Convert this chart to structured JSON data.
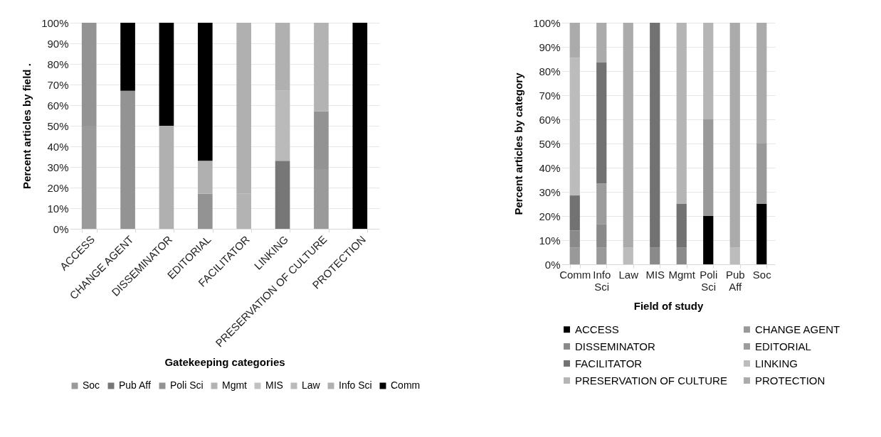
{
  "chart_data": [
    {
      "type": "bar",
      "stacked": true,
      "xlabel": "Gatekeeping categories",
      "ylabel": "Percent articles by field .",
      "categories": [
        "ACCESS",
        "CHANGE AGENT",
        "DISSEMINATOR",
        "EDITORIAL",
        "FACILITATOR",
        "LINKING",
        "PRESERVATION OF CULTURE",
        "PROTECTION"
      ],
      "ylim": [
        0,
        100
      ],
      "yticks": [
        {
          "value": 0,
          "label": "0%"
        },
        {
          "value": 10,
          "label": "10%"
        },
        {
          "value": 20,
          "label": "20%"
        },
        {
          "value": 30,
          "label": "30%"
        },
        {
          "value": 40,
          "label": "40%"
        },
        {
          "value": 50,
          "label": "50%"
        },
        {
          "value": 60,
          "label": "60%"
        },
        {
          "value": 70,
          "label": "70%"
        },
        {
          "value": 80,
          "label": "80%"
        },
        {
          "value": 90,
          "label": "90%"
        },
        {
          "value": 100,
          "label": "100%"
        }
      ],
      "grid": "y",
      "legend": "bottom",
      "series": [
        {
          "name": "Soc",
          "color": "#9a9a9a",
          "values": [
            50,
            null,
            null,
            null,
            null,
            null,
            29,
            null
          ]
        },
        {
          "name": "Pub Aff",
          "color": "#777777",
          "values": [
            null,
            null,
            null,
            null,
            null,
            33,
            null,
            null
          ]
        },
        {
          "name": "Poli Sci",
          "color": "#939393",
          "values": [
            50,
            67,
            null,
            17,
            null,
            null,
            28,
            null
          ]
        },
        {
          "name": "Mgmt",
          "color": "#b3b3b3",
          "values": [
            null,
            null,
            null,
            null,
            17,
            null,
            43,
            null
          ]
        },
        {
          "name": "MIS",
          "color": "#c2c2c2",
          "values": [
            null,
            null,
            null,
            null,
            null,
            null,
            null,
            null
          ]
        },
        {
          "name": "Law",
          "color": "#bababa",
          "values": [
            null,
            null,
            null,
            null,
            null,
            34,
            null,
            null
          ]
        },
        {
          "name": "Info Sci",
          "color": "#b0b0b0",
          "values": [
            null,
            null,
            50,
            16,
            83,
            33,
            null,
            null
          ]
        },
        {
          "name": "Comm",
          "color": "#000000",
          "values": [
            null,
            33,
            50,
            67,
            null,
            null,
            null,
            100
          ]
        }
      ]
    },
    {
      "type": "bar",
      "stacked": true,
      "xlabel": "Field of study",
      "ylabel": "Percent articles by category",
      "categories": [
        "Comm",
        "Info Sci",
        "Law",
        "MIS",
        "Mgmt",
        "Poli Sci",
        "Pub Aff",
        "Soc"
      ],
      "ylim": [
        0,
        100
      ],
      "yticks": [
        {
          "value": 0,
          "label": "0%"
        },
        {
          "value": 10,
          "label": "10%"
        },
        {
          "value": 20,
          "label": "20%"
        },
        {
          "value": 30,
          "label": "30%"
        },
        {
          "value": 40,
          "label": "40%"
        },
        {
          "value": 50,
          "label": "50%"
        },
        {
          "value": 60,
          "label": "60%"
        },
        {
          "value": 70,
          "label": "70%"
        },
        {
          "value": 80,
          "label": "80%"
        },
        {
          "value": 90,
          "label": "90%"
        },
        {
          "value": 100,
          "label": "100%"
        }
      ],
      "grid": "y",
      "legend": "bottom",
      "series": [
        {
          "name": "ACCESS",
          "color": "#000000",
          "values": [
            null,
            null,
            null,
            null,
            null,
            20,
            null,
            25
          ]
        },
        {
          "name": "CHANGE AGENT",
          "color": "#999999",
          "values": [
            7,
            7,
            null,
            null,
            null,
            40,
            null,
            25
          ]
        },
        {
          "name": "DISSEMINATOR",
          "color": "#8a8a8a",
          "values": [
            7,
            9.5,
            null,
            7,
            7,
            null,
            null,
            null
          ]
        },
        {
          "name": "EDITORIAL",
          "color": "#9c9c9c",
          "values": [
            null,
            17,
            null,
            null,
            null,
            null,
            null,
            null
          ]
        },
        {
          "name": "FACILITATOR",
          "color": "#727272",
          "values": [
            14.5,
            50,
            null,
            93,
            18,
            null,
            null,
            null
          ]
        },
        {
          "name": "LINKING",
          "color": "#bcbcbc",
          "values": [
            57,
            null,
            7,
            null,
            null,
            null,
            7,
            null
          ]
        },
        {
          "name": "PRESERVATION OF CULTURE",
          "color": "#b5b5b5",
          "values": [
            null,
            null,
            null,
            null,
            75,
            40,
            null,
            null
          ]
        },
        {
          "name": "PROTECTION",
          "color": "#ababab",
          "values": [
            14.5,
            16.5,
            93,
            null,
            null,
            null,
            93,
            50
          ]
        }
      ]
    }
  ]
}
